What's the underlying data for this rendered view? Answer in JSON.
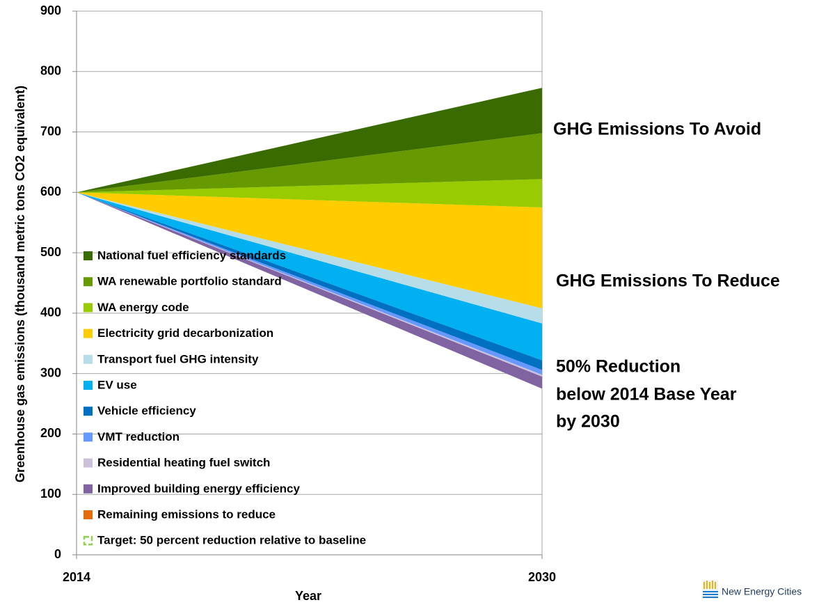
{
  "chart_data": {
    "type": "stacked_area",
    "x_label": "Year",
    "y_label": "Greenhouse gas emissions (thousand metric tons CO2 equivalent)",
    "x": [
      2014,
      2030
    ],
    "xlim": [
      2014,
      2030
    ],
    "xticks": [
      2014,
      2030
    ],
    "ylim": [
      0,
      900
    ],
    "yticks": [
      0,
      100,
      200,
      300,
      400,
      500,
      600,
      700,
      800,
      900
    ],
    "grid": true,
    "legend": "bottom-left",
    "series": [
      {
        "name": "National fuel efficiency standards",
        "color": "#3a6b00",
        "values": [
          0,
          75
        ]
      },
      {
        "name": "WA renewable portfolio standard",
        "color": "#669a00",
        "values": [
          0,
          76
        ]
      },
      {
        "name": "WA energy code",
        "color": "#99cc00",
        "values": [
          0,
          47
        ]
      },
      {
        "name": "Electricity grid decarbonization",
        "color": "#ffcc00",
        "values": [
          0,
          167
        ]
      },
      {
        "name": "Transport fuel GHG intensity",
        "color": "#b7dde8",
        "values": [
          0,
          25
        ]
      },
      {
        "name": "EV use",
        "color": "#00b0f0",
        "values": [
          0,
          61
        ]
      },
      {
        "name": "Vehicle efficiency",
        "color": "#0070c0",
        "values": [
          0,
          16
        ]
      },
      {
        "name": "VMT reduction",
        "color": "#6699ff",
        "values": [
          0,
          8
        ]
      },
      {
        "name": "Residential heating fuel switch",
        "color": "#ccc0da",
        "values": [
          0,
          3
        ]
      },
      {
        "name": "Improved building energy efficiency",
        "color": "#8064a2",
        "values": [
          0,
          20
        ]
      },
      {
        "name": "Remaining emissions to reduce",
        "color": "#e46c0a",
        "values": [
          600,
          275
        ],
        "visible": false
      },
      {
        "name": "Target: 50 percent reduction relative to baseline",
        "color": "#92d050",
        "marker": "outline"
      }
    ],
    "annotations": [
      [
        "GHG Emissions To Avoid"
      ],
      [
        "GHG Emissions To Reduce"
      ],
      [
        "50% Reduction",
        "below 2014 Base Year",
        "by 2030"
      ]
    ],
    "logo": "New Energy Cities"
  }
}
